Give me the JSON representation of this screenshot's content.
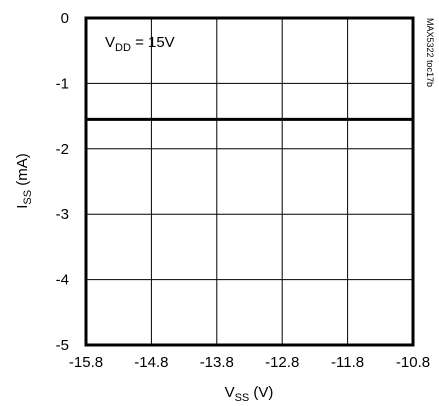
{
  "chart_data": {
    "type": "line",
    "annotation": {
      "base": "V",
      "sub": "DD",
      "rest": " = 15V"
    },
    "figure_code": "MAX5322 toc17b",
    "xlabel": {
      "base": "V",
      "sub": "SS",
      "rest": " (V)"
    },
    "ylabel": {
      "base": "I",
      "sub": "SS",
      "rest": " (mA)"
    },
    "xlim": [
      -15.8,
      -10.8
    ],
    "ylim": [
      -5,
      0
    ],
    "x_ticks": [
      "-15.8",
      "-14.8",
      "-13.8",
      "-12.8",
      "-11.8",
      "-10.8"
    ],
    "y_ticks": [
      "0",
      "-1",
      "-2",
      "-3",
      "-4",
      "-5"
    ],
    "grid": true,
    "series": [
      {
        "x": [
          -15.8,
          -10.8
        ],
        "y": [
          -1.55,
          -1.55
        ]
      }
    ]
  }
}
